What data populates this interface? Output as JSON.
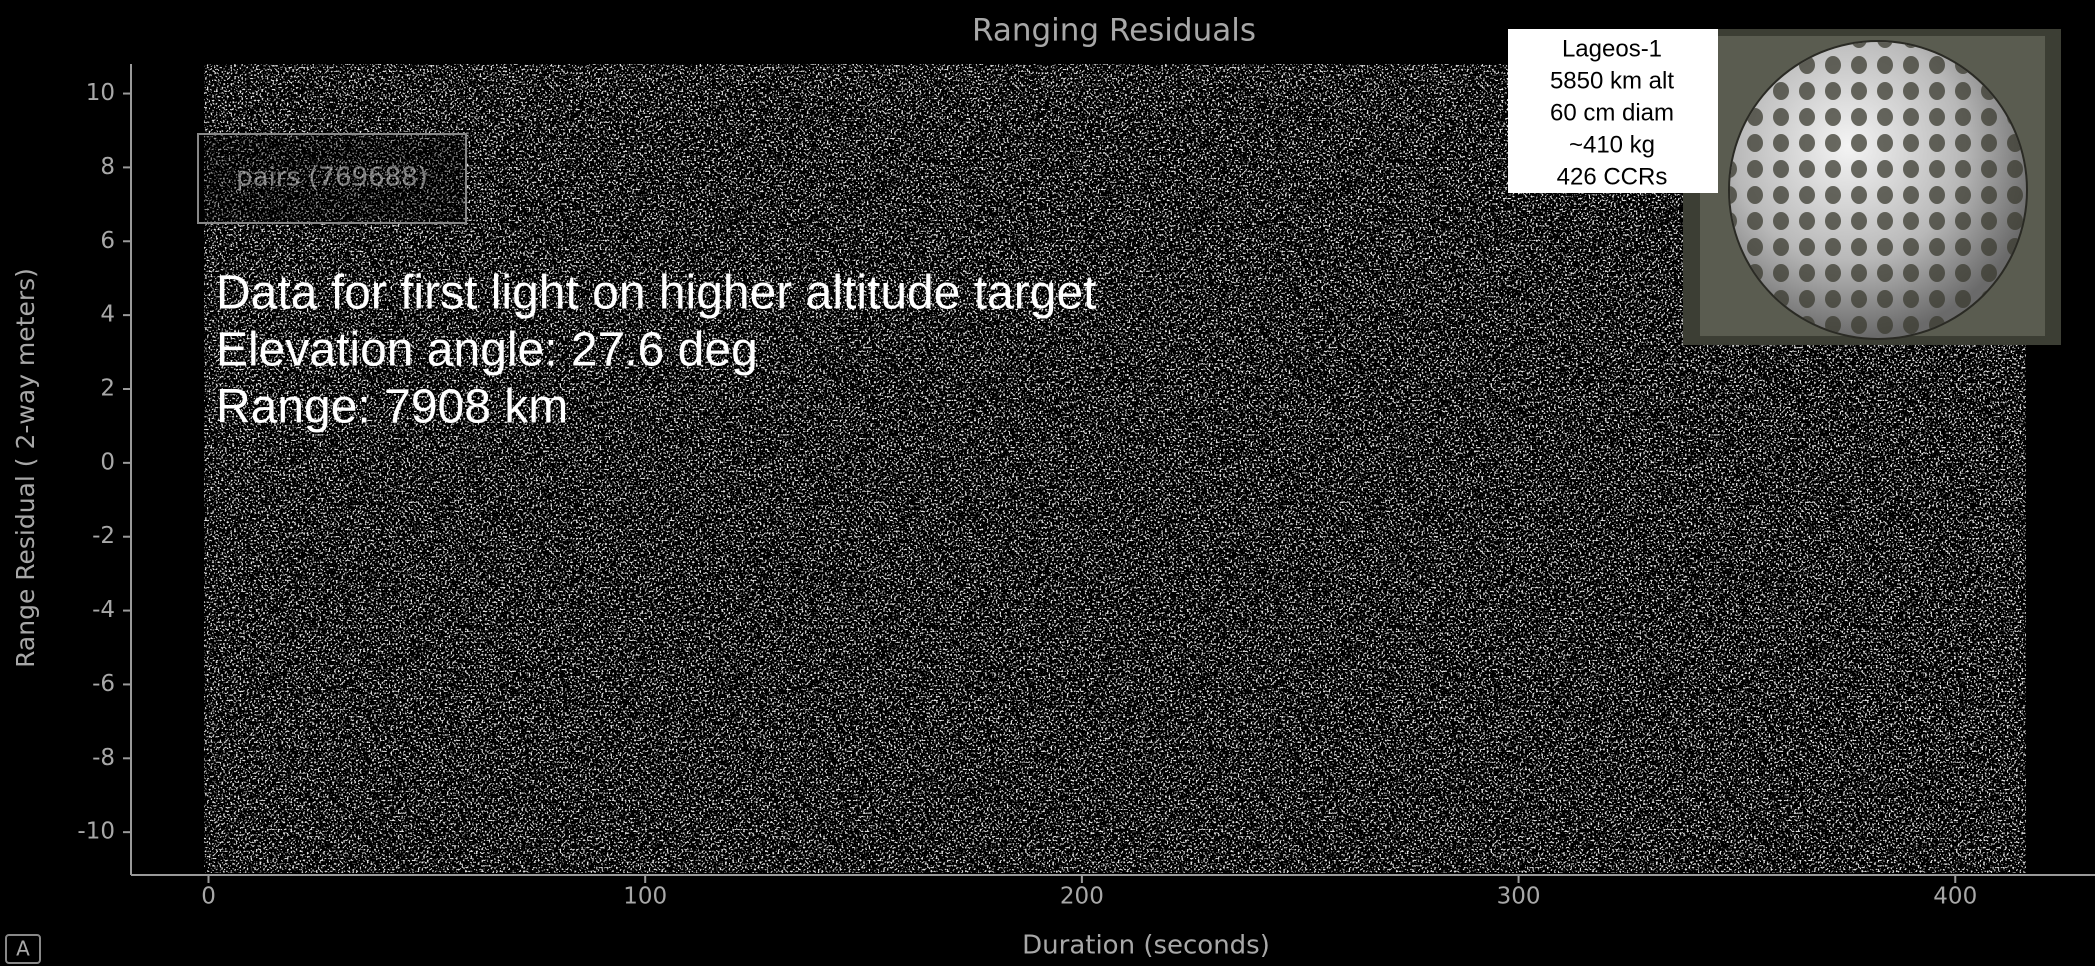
{
  "chart_data": {
    "type": "scatter",
    "title": "Ranging Residuals",
    "x_label": "Duration (seconds)",
    "y_label": "Range Residual ( 2-way meters)",
    "xlim": [
      -17.75,
      432
    ],
    "ylim": [
      -11.16,
      10.8
    ],
    "xticks": [
      0,
      100,
      200,
      300,
      400
    ],
    "yticks": [
      -10,
      -8,
      -6,
      -4,
      -2,
      0,
      2,
      4,
      6,
      8,
      10
    ],
    "series": [
      {
        "name": "pairs (769688)",
        "color": "#c8c8c8"
      }
    ],
    "annotations": [
      "Data for first light on higher altitude target",
      "Elevation angle: 27.6 deg",
      "Range: 7908 km"
    ],
    "inset": [
      "Lageos-1",
      "5850 km alt",
      "60 cm diam",
      "~410 kg",
      "426 CCRs"
    ]
  }
}
